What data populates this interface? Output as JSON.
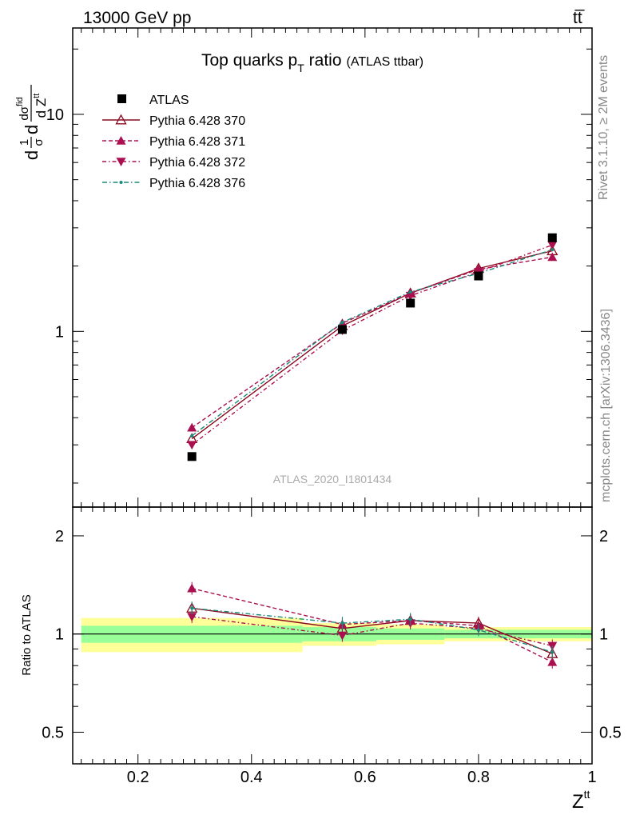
{
  "header": {
    "beam": "13000 GeV pp",
    "process": "tt̅"
  },
  "side_text": {
    "rivet": "Rivet 3.1.10, ≥ 2M events",
    "mcplots": "mcplots.cern.ch [arXiv:1306.3436]"
  },
  "chart_data": {
    "type": "line",
    "title": "Top quarks p",
    "title_sub": "T",
    "title_rest": " ratio",
    "title_small": "(ATLAS ttbar)",
    "watermark": "ATLAS_2020_I1801434",
    "ylabel_main": {
      "d1": "d",
      "frac_num": "1",
      "frac_den": "σ",
      "d2": "d",
      "sig": "dσ",
      "sig_sup": "fid",
      "den": "d Z",
      "den_sup": "tt"
    },
    "ylabel_ratio": "Ratio to ATLAS",
    "xlabel": "Z",
    "xlabel_sup": "tt",
    "xlim": [
      0.085,
      1.0
    ],
    "ylim_main": [
      0.155,
      25
    ],
    "ylim_ratio": [
      0.4,
      2.45
    ],
    "log_y": true,
    "x_ticks": [
      {
        "v": 0.2,
        "label": "0.2"
      },
      {
        "v": 0.4,
        "label": "0.4"
      },
      {
        "v": 0.6,
        "label": "0.6"
      },
      {
        "v": 0.8,
        "label": "0.8"
      },
      {
        "v": 1.0,
        "label": "1"
      }
    ],
    "y_ticks_main": [
      {
        "v": 1,
        "label": "1"
      },
      {
        "v": 10,
        "label": "10"
      }
    ],
    "y_ticks_ratio": [
      {
        "v": 0.5,
        "label": "0.5"
      },
      {
        "v": 1,
        "label": "1"
      },
      {
        "v": 2,
        "label": "2"
      }
    ],
    "x": [
      0.295,
      0.56,
      0.68,
      0.8,
      0.93
    ],
    "data": {
      "name": "ATLAS",
      "values": [
        0.265,
        1.02,
        1.35,
        1.8,
        2.7
      ],
      "bins": [
        [
          0.1,
          0.49
        ],
        [
          0.49,
          0.62
        ],
        [
          0.62,
          0.74
        ],
        [
          0.74,
          0.86
        ],
        [
          0.86,
          1.0
        ]
      ],
      "band_inner": [
        [
          0.94,
          1.06
        ],
        [
          0.95,
          1.05
        ],
        [
          0.96,
          1.04
        ],
        [
          0.97,
          1.03
        ],
        [
          0.97,
          1.03
        ]
      ],
      "band_outer": [
        [
          0.88,
          1.12
        ],
        [
          0.92,
          1.08
        ],
        [
          0.93,
          1.07
        ],
        [
          0.95,
          1.05
        ],
        [
          0.95,
          1.05
        ]
      ]
    },
    "series": [
      {
        "name": "Pythia 6.428 370",
        "color": "#8b0a1e",
        "dash": "",
        "marker": "tri-up-open",
        "values": [
          0.32,
          1.06,
          1.5,
          1.95,
          2.35
        ],
        "ratio": [
          1.2,
          1.04,
          1.1,
          1.08,
          0.87
        ]
      },
      {
        "name": "Pythia 6.428 371",
        "color": "#aa1050",
        "dash": "5,3",
        "marker": "tri-up",
        "values": [
          0.36,
          1.09,
          1.5,
          1.93,
          2.2
        ],
        "ratio": [
          1.38,
          1.07,
          1.1,
          1.06,
          0.82
        ]
      },
      {
        "name": "Pythia 6.428 372",
        "color": "#aa1050",
        "dash": "5,3,1.5,3",
        "marker": "tri-down",
        "values": [
          0.3,
          1.01,
          1.46,
          1.88,
          2.5
        ],
        "ratio": [
          1.13,
          0.99,
          1.08,
          1.04,
          0.92
        ]
      },
      {
        "name": "Pythia 6.428 376",
        "color": "#1a8a7a",
        "dash": "6,3,1.5,3",
        "marker": "dot",
        "values": [
          0.33,
          1.1,
          1.52,
          1.85,
          2.38
        ],
        "ratio": [
          1.2,
          1.08,
          1.11,
          1.03,
          0.88
        ]
      }
    ]
  }
}
